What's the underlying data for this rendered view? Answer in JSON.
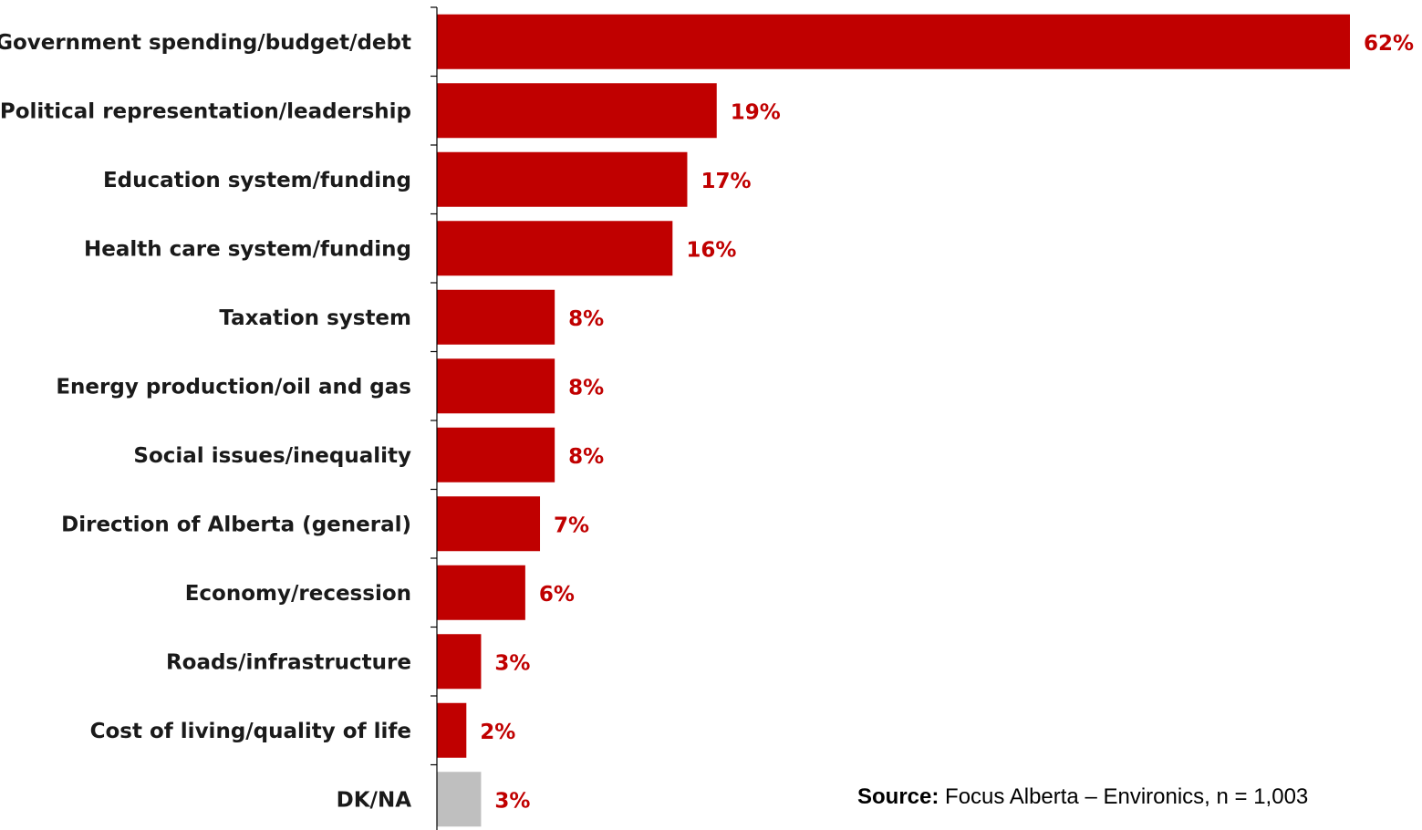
{
  "chart_data": {
    "type": "bar",
    "orientation": "horizontal",
    "categories": [
      "Government spending/budget/debt",
      "Political representation/leadership",
      "Education system/funding",
      "Health care system/funding",
      "Taxation system",
      "Energy production/oil and gas",
      "Social issues/inequality",
      "Direction of Alberta (general)",
      "Economy/recession",
      "Roads/infrastructure",
      "Cost of living/quality of life",
      "DK/NA"
    ],
    "values": [
      62,
      19,
      17,
      16,
      8,
      8,
      8,
      7,
      6,
      3,
      2,
      3
    ],
    "value_labels": [
      "62%",
      "19%",
      "17%",
      "16%",
      "8%",
      "8%",
      "8%",
      "7%",
      "6%",
      "3%",
      "2%",
      "3%"
    ],
    "xlim": [
      0,
      62
    ],
    "grid": false,
    "legend": "none",
    "colors": {
      "bar": "#c00000",
      "bar_dk_na": "#bfbfbf",
      "value_label": "#c00000",
      "category_label": "#1a1a1a",
      "axis": "#000000"
    }
  },
  "source": {
    "label": "Source:",
    "text": "Focus Alberta – Environics,  n = 1,003"
  }
}
